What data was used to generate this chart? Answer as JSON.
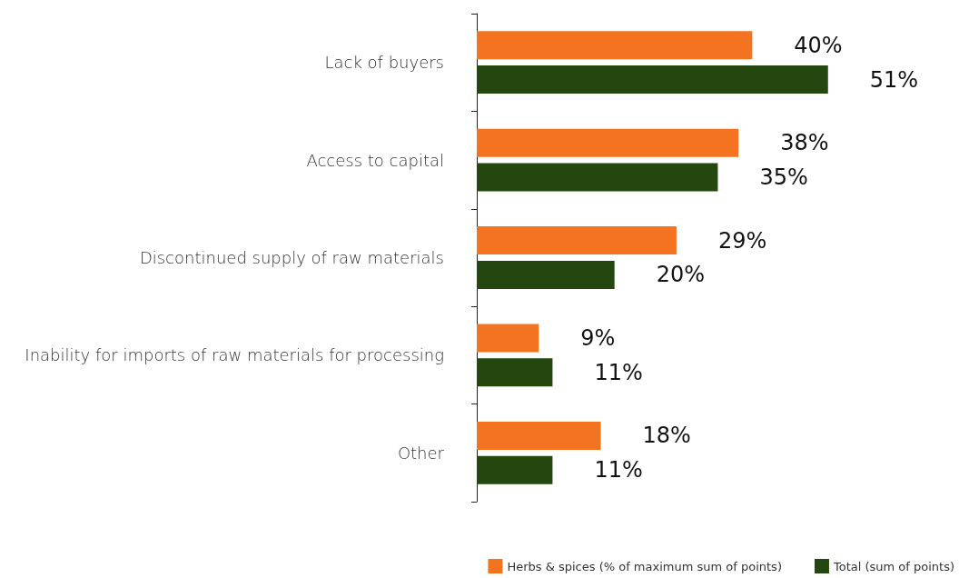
{
  "chart_data": {
    "type": "bar",
    "orientation": "horizontal",
    "categories": [
      "Lack of buyers",
      "Access to capital",
      "Discontinued supply of raw materials",
      "Inability for imports of raw materials for processing",
      "Other"
    ],
    "series": [
      {
        "name": "Herbs & spices (% of maximum sum of points)",
        "color": "#f47321",
        "values": [
          40,
          38,
          29,
          9,
          18
        ],
        "value_labels": [
          "40%",
          "38%",
          "29%",
          "9%",
          "18%"
        ]
      },
      {
        "name": "Total (sum of points)",
        "color": "#24470f",
        "values": [
          51,
          35,
          20,
          11,
          11
        ],
        "value_labels": [
          "51%",
          "35%",
          "20%",
          "11%",
          "11%"
        ]
      }
    ],
    "legend": "bottom right"
  }
}
